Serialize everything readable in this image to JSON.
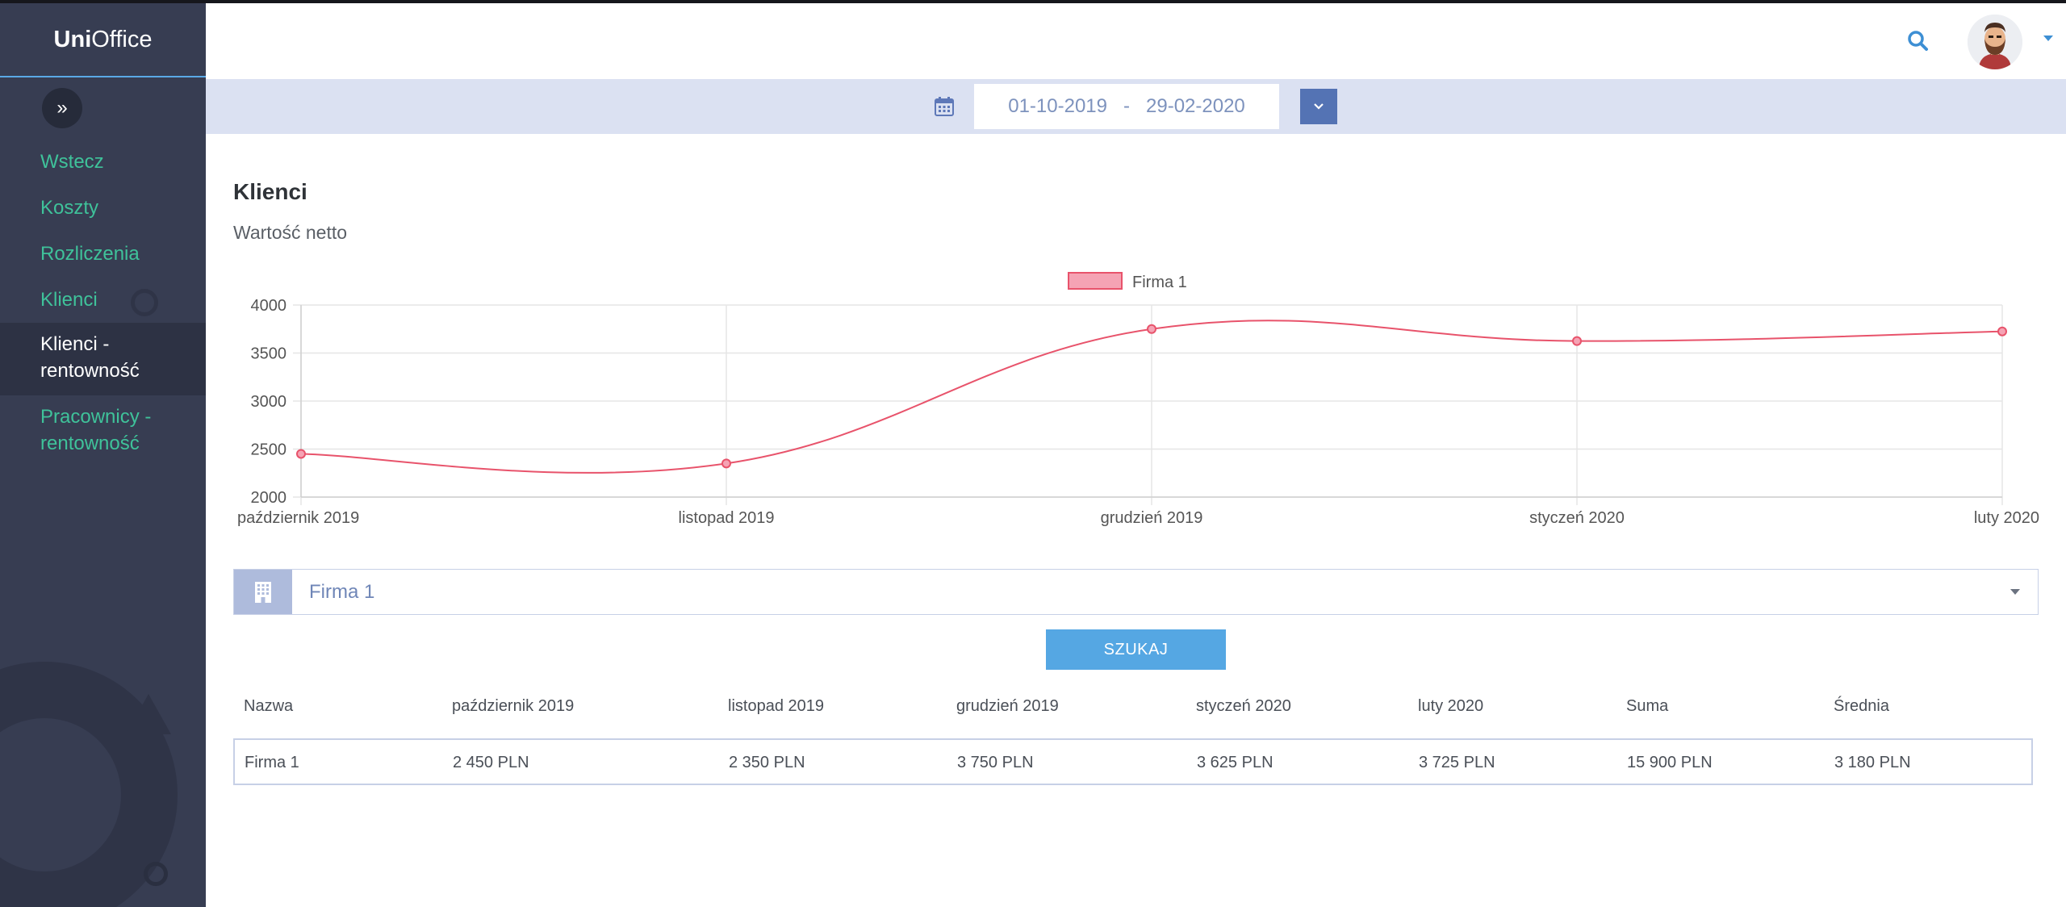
{
  "app": {
    "brand_bold": "Uni",
    "brand_light": "Office"
  },
  "sidebar": {
    "items": [
      {
        "label": "Wstecz"
      },
      {
        "label": "Koszty"
      },
      {
        "label": "Rozliczenia"
      },
      {
        "label": "Klienci"
      },
      {
        "label": "Klienci - rentowność",
        "line1": "Klienci -",
        "line2": "rentowność",
        "active": true
      },
      {
        "label": "Pracownicy - rentowność",
        "line1": "Pracownicy -",
        "line2": "rentowność"
      }
    ]
  },
  "datebar": {
    "range": "01-10-2019   -   29-02-2020"
  },
  "main": {
    "title": "Klienci",
    "subtitle": "Wartość netto"
  },
  "chart_data": {
    "type": "line",
    "categories": [
      "październik 2019",
      "listopad 2019",
      "grudzień 2019",
      "styczeń 2020",
      "luty 2020"
    ],
    "series": [
      {
        "name": "Firma 1",
        "values": [
          2450,
          2350,
          3750,
          3625,
          3725
        ],
        "color": "#e8536b",
        "fill": "#f5a3b4"
      }
    ],
    "y_ticks": [
      2000,
      2500,
      3000,
      3500,
      4000
    ],
    "ylim": [
      2000,
      4000
    ],
    "grid": true,
    "legend": "top-center",
    "smooth": true
  },
  "filter": {
    "company": "Firma 1"
  },
  "search_button": {
    "label": "SZUKAJ"
  },
  "table": {
    "headers": [
      "Nazwa",
      "październik 2019",
      "listopad 2019",
      "grudzień 2019",
      "styczeń 2020",
      "luty 2020",
      "Suma",
      "Średnia"
    ],
    "rows": [
      [
        "Firma 1",
        "2 450 PLN",
        "2 350 PLN",
        "3 750 PLN",
        "3 625 PLN",
        "3 725 PLN",
        "15 900 PLN",
        "3 180 PLN"
      ]
    ]
  }
}
